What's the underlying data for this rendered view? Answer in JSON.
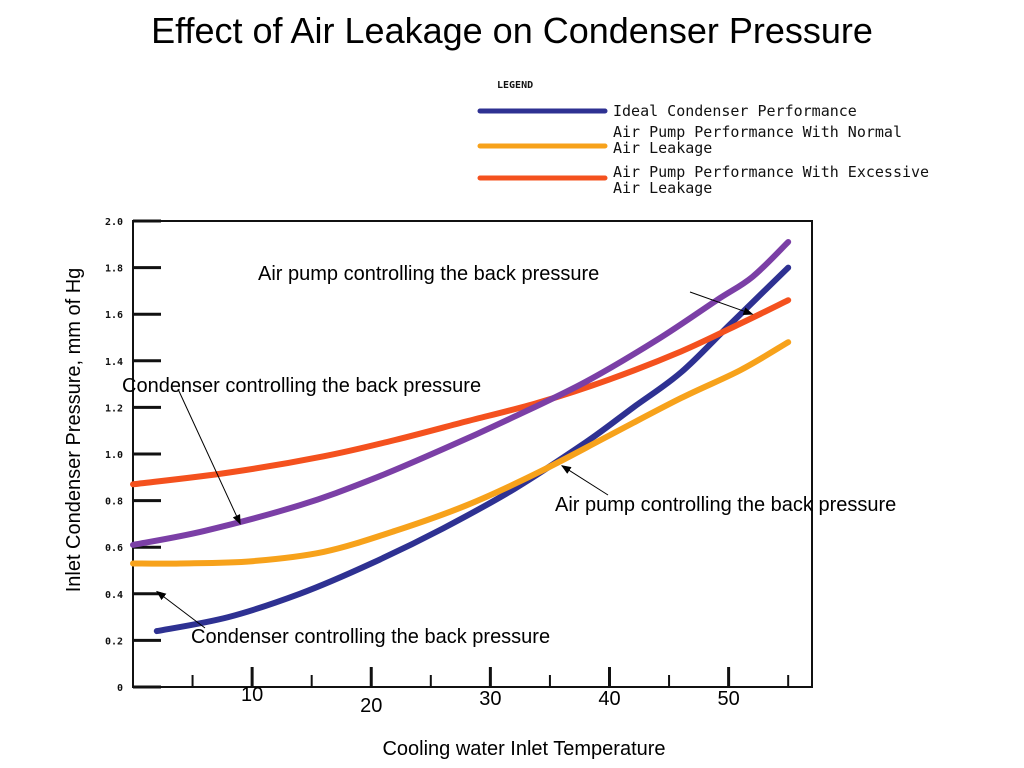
{
  "title": "Effect of Air Leakage on Condenser Pressure",
  "chart_data": {
    "type": "line",
    "title": "Effect of Air Leakage on Condenser Pressure",
    "xlabel": "Cooling water Inlet Temperature",
    "ylabel": "Inlet Condenser Pressure, mm of Hg",
    "xlim": [
      0,
      57
    ],
    "ylim": [
      0,
      2.0
    ],
    "x_ticks": [
      10,
      20,
      30,
      40,
      50
    ],
    "y_ticks": [
      "0",
      "0.2",
      "0.4",
      "0.6",
      "0.8",
      "1.0",
      "1.2",
      "1.4",
      "1.6",
      "1.8",
      "2.0"
    ],
    "legend": {
      "heading": "LEGEND",
      "placement": "top-right",
      "entries": [
        {
          "series": 0,
          "lines": [
            "Ideal Condenser Performance"
          ]
        },
        {
          "series": 1,
          "lines": [
            "Air Pump Performance With Normal",
            "Air Leakage"
          ]
        },
        {
          "series": 2,
          "lines": [
            "Air Pump Performance With Excessive",
            "Air Leakage"
          ]
        }
      ]
    },
    "series": [
      {
        "name": "Ideal Condenser Performance",
        "color": "#2e3192",
        "points": [
          [
            2,
            0.24
          ],
          [
            8,
            0.3
          ],
          [
            14,
            0.4
          ],
          [
            20,
            0.53
          ],
          [
            26,
            0.68
          ],
          [
            32,
            0.85
          ],
          [
            38,
            1.05
          ],
          [
            42,
            1.2
          ],
          [
            46,
            1.35
          ],
          [
            50,
            1.55
          ],
          [
            55,
            1.8
          ]
        ]
      },
      {
        "name": "Air Pump Performance With Normal Air Leakage",
        "color": "#f7a21b",
        "points": [
          [
            0,
            0.53
          ],
          [
            4,
            0.53
          ],
          [
            10,
            0.54
          ],
          [
            16,
            0.58
          ],
          [
            22,
            0.67
          ],
          [
            28,
            0.78
          ],
          [
            34,
            0.92
          ],
          [
            40,
            1.08
          ],
          [
            46,
            1.24
          ],
          [
            51,
            1.36
          ],
          [
            55,
            1.48
          ]
        ]
      },
      {
        "name": "Air Pump Performance With Excessive Air Leakage",
        "color": "#f4511e",
        "points": [
          [
            0,
            0.87
          ],
          [
            8,
            0.92
          ],
          [
            16,
            0.99
          ],
          [
            22,
            1.06
          ],
          [
            28,
            1.14
          ],
          [
            34,
            1.22
          ],
          [
            40,
            1.32
          ],
          [
            46,
            1.44
          ],
          [
            51,
            1.56
          ],
          [
            55,
            1.66
          ]
        ]
      },
      {
        "name": "",
        "color": "#7b3fa6",
        "points": [
          [
            0,
            0.61
          ],
          [
            6,
            0.67
          ],
          [
            14,
            0.78
          ],
          [
            20,
            0.89
          ],
          [
            26,
            1.02
          ],
          [
            32,
            1.16
          ],
          [
            38,
            1.31
          ],
          [
            44,
            1.49
          ],
          [
            49,
            1.66
          ],
          [
            52,
            1.76
          ],
          [
            55,
            1.91
          ]
        ]
      }
    ],
    "annotations": [
      {
        "text": "Air pump controlling the back pressure",
        "target": [
          52,
          1.6
        ]
      },
      {
        "text": "Condenser controlling the back pressure",
        "target": [
          9,
          0.7
        ]
      },
      {
        "text": "Air pump controlling the back pressure",
        "target": [
          36,
          0.95
        ]
      },
      {
        "text": "Condenser controlling the back pressure",
        "target": [
          2,
          0.41
        ]
      }
    ]
  }
}
